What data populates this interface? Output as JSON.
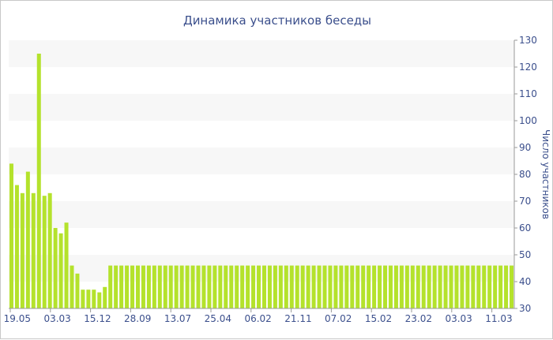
{
  "chart_data": {
    "type": "bar",
    "title": "Динамика участников беседы",
    "ylabel": "Число участников",
    "y_axis_side": "right",
    "ylim": [
      30,
      130
    ],
    "y_ticks": [
      30,
      40,
      50,
      60,
      70,
      80,
      90,
      100,
      110,
      120,
      130
    ],
    "x_tick_labels": [
      "19.05",
      "03.03",
      "15.12",
      "28.09",
      "13.07",
      "25.04",
      "06.02",
      "21.11",
      "07.02",
      "15.02",
      "23.02",
      "03.03",
      "11.03"
    ],
    "grid": "alternating horizontal bands",
    "colors": {
      "bar": "#b4e22c",
      "band": "#f7f7f7",
      "axis": "#9a9a9a",
      "text": "#3b4f8c"
    },
    "values": [
      84,
      76,
      73,
      81,
      73,
      125,
      72,
      73,
      60,
      58,
      62,
      46,
      43,
      37,
      37,
      37,
      36,
      38,
      46,
      46,
      46,
      46,
      46,
      46,
      46,
      46,
      46,
      46,
      46,
      46,
      46,
      46,
      46,
      46,
      46,
      46,
      46,
      46,
      46,
      46,
      46,
      46,
      46,
      46,
      46,
      46,
      46,
      46,
      46,
      46,
      46,
      46,
      46,
      46,
      46,
      46,
      46,
      46,
      46,
      46,
      46,
      46,
      46,
      46,
      46,
      46,
      46,
      46,
      46,
      46,
      46,
      46,
      46,
      46,
      46,
      46,
      46,
      46,
      46,
      46,
      46,
      46,
      46,
      46,
      46,
      46,
      46,
      46,
      46,
      46,
      46,
      46
    ]
  }
}
